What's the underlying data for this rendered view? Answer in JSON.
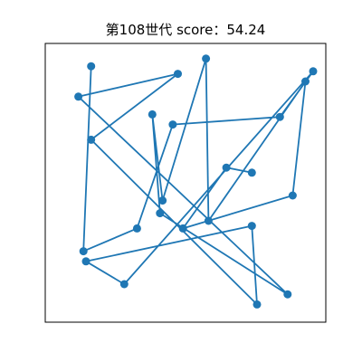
{
  "chart_data": {
    "type": "line",
    "title": "第108世代 score：54.24",
    "xlabel": "",
    "ylabel": "",
    "xlim": [
      0,
      1
    ],
    "ylim": [
      0,
      1
    ],
    "grid": false,
    "axes_ticks": false,
    "colors": {
      "series": "#1f77b4",
      "frame": "#000000",
      "background": "#ffffff"
    },
    "series": [
      {
        "marker": "circle",
        "closed": false,
        "points": [
          {
            "x": 0.13,
            "y": 0.96
          },
          {
            "x": 0.1,
            "y": 0.23
          },
          {
            "x": 0.31,
            "y": 0.32
          },
          {
            "x": 0.45,
            "y": 0.73
          },
          {
            "x": 0.87,
            "y": 0.76
          },
          {
            "x": 1.0,
            "y": 0.94
          },
          {
            "x": 0.26,
            "y": 0.1
          },
          {
            "x": 0.11,
            "y": 0.19
          },
          {
            "x": 0.76,
            "y": 0.33
          },
          {
            "x": 0.78,
            "y": 0.02
          },
          {
            "x": 0.13,
            "y": 0.67
          },
          {
            "x": 0.47,
            "y": 0.93
          },
          {
            "x": 0.08,
            "y": 0.84
          },
          {
            "x": 0.9,
            "y": 0.06
          },
          {
            "x": 0.4,
            "y": 0.38
          },
          {
            "x": 0.37,
            "y": 0.77
          },
          {
            "x": 0.41,
            "y": 0.43
          },
          {
            "x": 0.58,
            "y": 0.99
          },
          {
            "x": 0.59,
            "y": 0.35
          },
          {
            "x": 0.97,
            "y": 0.9
          },
          {
            "x": 0.92,
            "y": 0.45
          },
          {
            "x": 0.49,
            "y": 0.32
          },
          {
            "x": 0.66,
            "y": 0.56
          },
          {
            "x": 0.76,
            "y": 0.54
          }
        ]
      }
    ]
  }
}
